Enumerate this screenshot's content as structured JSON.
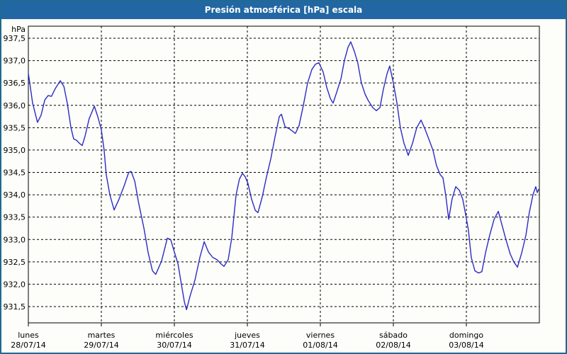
{
  "window": {
    "title": "Presión atmosférica [hPa] escala"
  },
  "colors": {
    "frame": "#1f6a92",
    "titlebar": "#2267a3",
    "titlebar_text": "#ffffff",
    "background": "#fdfdfa",
    "grid": "#000000",
    "axis": "#000000",
    "line": "#2b2bc4",
    "label_text": "#000000"
  },
  "chart_data": {
    "type": "line",
    "title": "Presión atmosférica [hPa] escala",
    "ylabel": "hPa",
    "unit_label": "hPa",
    "grid": "dashed",
    "legend_position": "none",
    "ylim": [
      931.14,
      937.77
    ],
    "yticks": {
      "values": [
        937.5,
        937.0,
        936.5,
        936.0,
        935.5,
        935.0,
        934.5,
        934.0,
        933.5,
        933.0,
        932.5,
        932.0,
        931.5
      ],
      "labels": [
        "937,5",
        "937,0",
        "936,5",
        "936,0",
        "935,5",
        "935,0",
        "934,5",
        "934,0",
        "933,5",
        "933,0",
        "932,5",
        "932,0",
        "931,5"
      ]
    },
    "x_axis": {
      "unit": "hours",
      "range_hours": [
        0,
        168
      ],
      "day_span_hours": 24,
      "days": [
        {
          "name": "lunes",
          "date": "28/07/14",
          "start_hour": 0
        },
        {
          "name": "martes",
          "date": "29/07/14",
          "start_hour": 24
        },
        {
          "name": "miércoles",
          "date": "30/07/14",
          "start_hour": 48
        },
        {
          "name": "jueves",
          "date": "31/07/14",
          "start_hour": 72
        },
        {
          "name": "viernes",
          "date": "01/08/14",
          "start_hour": 96
        },
        {
          "name": "sábado",
          "date": "02/08/14",
          "start_hour": 120
        },
        {
          "name": "domingo",
          "date": "03/08/14",
          "start_hour": 144
        }
      ]
    },
    "series": [
      {
        "name": "Presión atmosférica",
        "color": "#2b2bc4",
        "points": [
          [
            0,
            936.72
          ],
          [
            1.4,
            936.05
          ],
          [
            3,
            935.62
          ],
          [
            4.2,
            935.78
          ],
          [
            5.4,
            936.12
          ],
          [
            6.5,
            936.22
          ],
          [
            7.6,
            936.2
          ],
          [
            8.9,
            936.38
          ],
          [
            10.5,
            936.55
          ],
          [
            11.7,
            936.42
          ],
          [
            12.8,
            936.05
          ],
          [
            14,
            935.5
          ],
          [
            14.9,
            935.25
          ],
          [
            15.8,
            935.22
          ],
          [
            16.8,
            935.15
          ],
          [
            17.7,
            935.1
          ],
          [
            18.6,
            935.3
          ],
          [
            20,
            935.7
          ],
          [
            21.7,
            935.98
          ],
          [
            22.8,
            935.75
          ],
          [
            24,
            935.45
          ],
          [
            24.9,
            935.0
          ],
          [
            25.6,
            934.45
          ],
          [
            26.8,
            934.0
          ],
          [
            28.2,
            933.66
          ],
          [
            29.8,
            933.9
          ],
          [
            31.5,
            934.2
          ],
          [
            33,
            934.5
          ],
          [
            33.8,
            934.52
          ],
          [
            35,
            934.3
          ],
          [
            36.3,
            933.8
          ],
          [
            38,
            933.25
          ],
          [
            39.4,
            932.7
          ],
          [
            40.8,
            932.3
          ],
          [
            41.9,
            932.22
          ],
          [
            43.8,
            932.52
          ],
          [
            45.7,
            933.03
          ],
          [
            46.8,
            933.0
          ],
          [
            48,
            932.72
          ],
          [
            49.2,
            932.45
          ],
          [
            50.3,
            932.0
          ],
          [
            51.3,
            931.6
          ],
          [
            52,
            931.43
          ],
          [
            53.1,
            931.72
          ],
          [
            54.8,
            932.1
          ],
          [
            56.4,
            932.6
          ],
          [
            57.8,
            932.95
          ],
          [
            59.2,
            932.72
          ],
          [
            60.6,
            932.6
          ],
          [
            62,
            932.55
          ],
          [
            63.4,
            932.45
          ],
          [
            64.3,
            932.4
          ],
          [
            65.7,
            932.55
          ],
          [
            66.9,
            933.05
          ],
          [
            68.3,
            934.0
          ],
          [
            69.4,
            934.35
          ],
          [
            70.4,
            934.48
          ],
          [
            71.3,
            934.4
          ],
          [
            72.2,
            934.25
          ],
          [
            73.4,
            933.9
          ],
          [
            74.6,
            933.65
          ],
          [
            75.5,
            933.6
          ],
          [
            76.9,
            933.95
          ],
          [
            78.3,
            934.4
          ],
          [
            79.7,
            934.8
          ],
          [
            81.1,
            935.3
          ],
          [
            82.5,
            935.75
          ],
          [
            83.2,
            935.8
          ],
          [
            84.4,
            935.52
          ],
          [
            85.7,
            935.48
          ],
          [
            86.9,
            935.42
          ],
          [
            87.8,
            935.37
          ],
          [
            89,
            935.55
          ],
          [
            90.4,
            936.0
          ],
          [
            91.8,
            936.5
          ],
          [
            93.2,
            936.8
          ],
          [
            94.4,
            936.92
          ],
          [
            95.5,
            936.95
          ],
          [
            96.9,
            936.75
          ],
          [
            98.1,
            936.4
          ],
          [
            99.3,
            936.15
          ],
          [
            100.2,
            936.05
          ],
          [
            101.4,
            936.3
          ],
          [
            102.8,
            936.6
          ],
          [
            103.9,
            937.0
          ],
          [
            105.1,
            937.3
          ],
          [
            106,
            937.42
          ],
          [
            107.2,
            937.2
          ],
          [
            108.3,
            936.95
          ],
          [
            109.5,
            936.5
          ],
          [
            110.7,
            936.25
          ],
          [
            111.8,
            936.1
          ],
          [
            113.2,
            935.95
          ],
          [
            114.4,
            935.88
          ],
          [
            115.6,
            935.95
          ],
          [
            116.7,
            936.35
          ],
          [
            117.9,
            936.7
          ],
          [
            118.8,
            936.88
          ],
          [
            120,
            936.5
          ],
          [
            121.2,
            936.05
          ],
          [
            122.3,
            935.5
          ],
          [
            123.5,
            935.15
          ],
          [
            124.9,
            934.88
          ],
          [
            126.3,
            935.15
          ],
          [
            127.7,
            935.5
          ],
          [
            129.1,
            935.67
          ],
          [
            130.5,
            935.45
          ],
          [
            131.9,
            935.2
          ],
          [
            133,
            935.0
          ],
          [
            134.2,
            934.65
          ],
          [
            135.4,
            934.45
          ],
          [
            136.3,
            934.38
          ],
          [
            137.2,
            934.0
          ],
          [
            138.2,
            933.45
          ],
          [
            139.3,
            933.9
          ],
          [
            140.5,
            934.18
          ],
          [
            141.7,
            934.1
          ],
          [
            142.8,
            933.9
          ],
          [
            143.8,
            933.55
          ],
          [
            144.7,
            933.2
          ],
          [
            145.6,
            932.6
          ],
          [
            146.8,
            932.3
          ],
          [
            148,
            932.25
          ],
          [
            149.1,
            932.28
          ],
          [
            150.3,
            932.7
          ],
          [
            151.7,
            933.1
          ],
          [
            153.1,
            933.45
          ],
          [
            154.5,
            933.63
          ],
          [
            155.6,
            933.35
          ],
          [
            157,
            933.0
          ],
          [
            158.4,
            932.68
          ],
          [
            159.6,
            932.5
          ],
          [
            160.8,
            932.38
          ],
          [
            162.2,
            932.7
          ],
          [
            163.6,
            933.1
          ],
          [
            164.7,
            933.6
          ],
          [
            165.9,
            934.0
          ],
          [
            166.8,
            934.18
          ],
          [
            167.3,
            934.05
          ],
          [
            167.8,
            934.12
          ]
        ]
      }
    ]
  }
}
